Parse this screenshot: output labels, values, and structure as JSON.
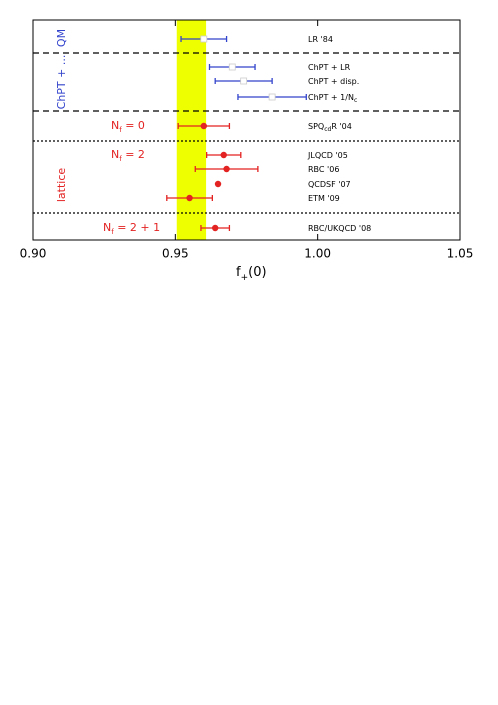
{
  "chart_data": {
    "type": "forest",
    "xlabel": [
      "f",
      "+",
      "(0)"
    ],
    "xlim": [
      0.9,
      1.05
    ],
    "xticks": [
      {
        "value": 0.9,
        "label": "0.90"
      },
      {
        "value": 0.95,
        "label": "0.95"
      },
      {
        "value": 1.0,
        "label": "1.00"
      },
      {
        "value": 1.05,
        "label": "1.05"
      }
    ],
    "band": [
      0.9505,
      0.9608
    ],
    "band_color": "#eeff00",
    "rows": [
      {
        "label": [
          "LR '84"
        ],
        "value": 0.96,
        "error": 0.008,
        "marker": "open",
        "color": "#3344cc"
      },
      {
        "label": [
          "ChPT + LR"
        ],
        "value": 0.97,
        "error": 0.008,
        "marker": "open",
        "color": "#3344cc"
      },
      {
        "label": [
          "ChPT + disp."
        ],
        "value": 0.974,
        "error": 0.01,
        "marker": "open",
        "color": "#3344cc"
      },
      {
        "label": [
          "ChPT + 1/N",
          "c"
        ],
        "value": 0.984,
        "error": 0.012,
        "marker": "open",
        "color": "#3344cc"
      },
      {
        "label": [
          "SPQ",
          "cd",
          "R '04"
        ],
        "value": 0.96,
        "error": 0.009,
        "marker": "filled",
        "color": "#e32222"
      },
      {
        "label": [
          "JLQCD '05"
        ],
        "value": 0.967,
        "error": 0.006,
        "marker": "filled",
        "color": "#e32222"
      },
      {
        "label": [
          "RBC '06"
        ],
        "value": 0.968,
        "error": 0.011,
        "marker": "filled",
        "color": "#e32222"
      },
      {
        "label": [
          "QCDSF '07"
        ],
        "value": 0.965,
        "error": null,
        "marker": "filled",
        "color": "#e32222"
      },
      {
        "label": [
          "ETM '09"
        ],
        "value": 0.955,
        "error": 0.008,
        "marker": "filled",
        "color": "#e32222"
      },
      {
        "label": [
          "RBC/UKQCD '08"
        ],
        "value": 0.964,
        "error": 0.005,
        "marker": "filled",
        "color": "#e32222"
      }
    ],
    "group_labels": [
      {
        "text": [
          "QM"
        ],
        "color": "#3344cc"
      },
      {
        "text": [
          "ChPT + ..."
        ],
        "color": "#3344cc"
      },
      {
        "text": [
          "lattice"
        ],
        "color": "#e32222"
      },
      {
        "text": [
          "N",
          "f",
          " = 0"
        ],
        "color": "#e32222"
      },
      {
        "text": [
          "N",
          "f",
          " = 2"
        ],
        "color": "#e32222"
      },
      {
        "text": [
          "N",
          "f",
          " = 2 + 1"
        ],
        "color": "#e32222"
      }
    ]
  }
}
